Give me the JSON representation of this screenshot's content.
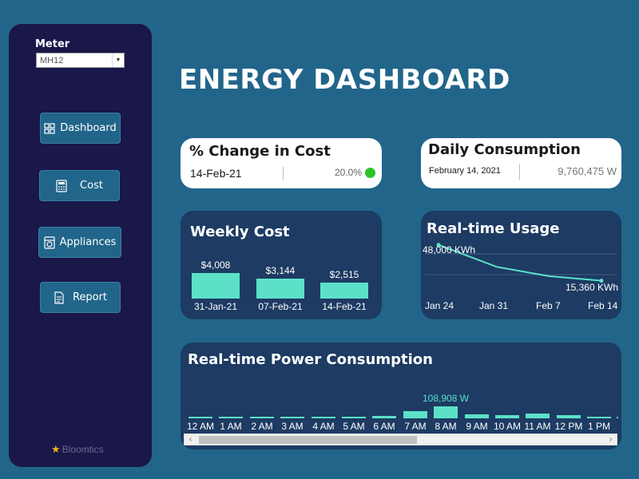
{
  "sidebar": {
    "meter_label": "Meter",
    "meter_value": "MH12",
    "items": [
      {
        "label": "Dashboard",
        "icon": "grid-icon"
      },
      {
        "label": "Cost",
        "icon": "calculator-icon"
      },
      {
        "label": "Appliances",
        "icon": "appliance-icon"
      },
      {
        "label": "Report",
        "icon": "report-icon"
      }
    ],
    "brand": "Bloomtics"
  },
  "header": {
    "title": "ENERGY DASHBOARD"
  },
  "change_card": {
    "title": "% Change in Cost",
    "date": "14-Feb-21",
    "value": "20.0%",
    "status_color": "#2bc42b"
  },
  "daily_card": {
    "title": "Daily Consumption",
    "date": "February 14, 2021",
    "value": "9,760,475 W"
  },
  "weekly_cost": {
    "title": "Weekly Cost",
    "bars": [
      {
        "label": "$4,008",
        "date": "31-Jan-21"
      },
      {
        "label": "$3,144",
        "date": "07-Feb-21"
      },
      {
        "label": "$2,515",
        "date": "14-Feb-21"
      }
    ]
  },
  "realtime_usage": {
    "title": "Real-time Usage",
    "start_label": "48,000 KWh",
    "end_label": "15,360 KWh",
    "ticks": [
      "Jan 24",
      "Jan 31",
      "Feb 7",
      "Feb 14"
    ]
  },
  "power": {
    "title": "Real-time Power Consumption",
    "peak_label": "108,908 W",
    "ticks": [
      "12 AM",
      "1 AM",
      "2 AM",
      "3 AM",
      "4 AM",
      "5 AM",
      "6 AM",
      "7 AM",
      "8 AM",
      "9 AM",
      "10 AM",
      "11 AM",
      "12 PM",
      "1 PM"
    ]
  },
  "chart_data": [
    {
      "type": "bar",
      "title": "Weekly Cost",
      "categories": [
        "31-Jan-21",
        "07-Feb-21",
        "14-Feb-21"
      ],
      "values": [
        4008,
        3144,
        2515
      ]
    },
    {
      "type": "line",
      "title": "Real-time Usage",
      "x": [
        "Jan 24",
        "Jan 31",
        "Feb 7",
        "Feb 14"
      ],
      "y": [
        48000,
        28000,
        19500,
        15360
      ],
      "ylabel": "KWh"
    },
    {
      "type": "bar",
      "title": "Real-time Power Consumption",
      "categories": [
        "12 AM",
        "1 AM",
        "2 AM",
        "3 AM",
        "4 AM",
        "5 AM",
        "6 AM",
        "7 AM",
        "8 AM",
        "9 AM",
        "10 AM",
        "11 AM",
        "12 PM",
        "1 PM"
      ],
      "values": [
        13000,
        9000,
        8000,
        9000,
        14000,
        17000,
        22000,
        66000,
        108908,
        35000,
        28000,
        40000,
        27000,
        7000
      ]
    }
  ],
  "colors": {
    "background": "#22658a",
    "sidebar": "#1a1749",
    "card_dark": "#1d3b63",
    "bar": "#5ce1c8",
    "line": "#5ce1c8"
  }
}
